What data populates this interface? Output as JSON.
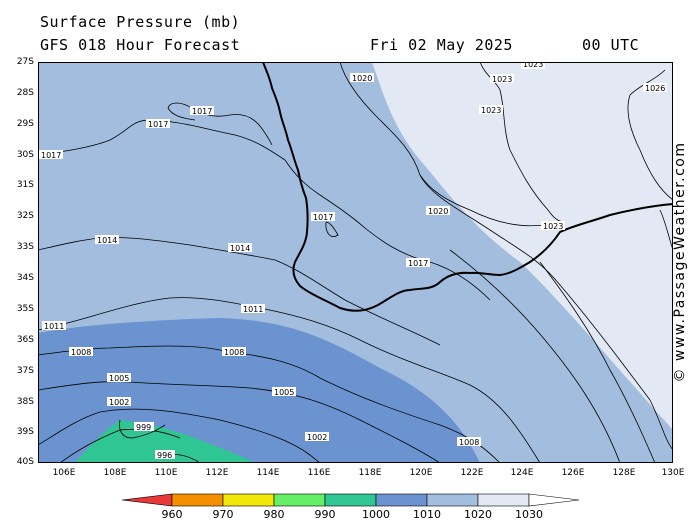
{
  "header": {
    "title": "Surface Pressure (mb)",
    "subtitle": "GFS 018 Hour Forecast",
    "date": "Fri 02 May 2025",
    "time": "00 UTC"
  },
  "credit": "© www.PassageWeather.com",
  "lat_labels": [
    "27S",
    "28S",
    "29S",
    "30S",
    "31S",
    "32S",
    "33S",
    "34S",
    "35S",
    "36S",
    "37S",
    "38S",
    "39S",
    "40S"
  ],
  "lon_labels": [
    "106E",
    "108E",
    "110E",
    "112E",
    "114E",
    "116E",
    "118E",
    "120E",
    "122E",
    "124E",
    "126E",
    "128E",
    "130E"
  ],
  "isobar_labels": {
    "l1020": "1020",
    "l1023a": "1023",
    "l1023b": "1023",
    "l1023c": "1023",
    "l1023d": "1023",
    "l1026": "1026",
    "l1017a": "1017",
    "l1017b": "1017",
    "l1017c": "1017",
    "l1017d": "1017",
    "l1017e": "1017",
    "l1020b": "1020",
    "l1014a": "1014",
    "l1014b": "1014",
    "l1011a": "1011",
    "l1011b": "1011",
    "l1008a": "1008",
    "l1008b": "1008",
    "l1008c": "1008",
    "l1005a": "1005",
    "l1005b": "1005",
    "l1002a": "1002",
    "l1002b": "1002",
    "l999": "999",
    "l996": "996"
  },
  "scale_labels": [
    "960",
    "970",
    "980",
    "990",
    "1000",
    "1010",
    "1020",
    "1030"
  ],
  "colors": {
    "band_1030": "#e2e9f4",
    "band_1020": "#a3bddf",
    "band_1010": "#6b93cf",
    "band_1000": "#2fc693",
    "band_990": "#67ee67",
    "band_980": "#f0e808",
    "band_970": "#f49000",
    "band_960": "#e8383a",
    "border": "#000000"
  }
}
